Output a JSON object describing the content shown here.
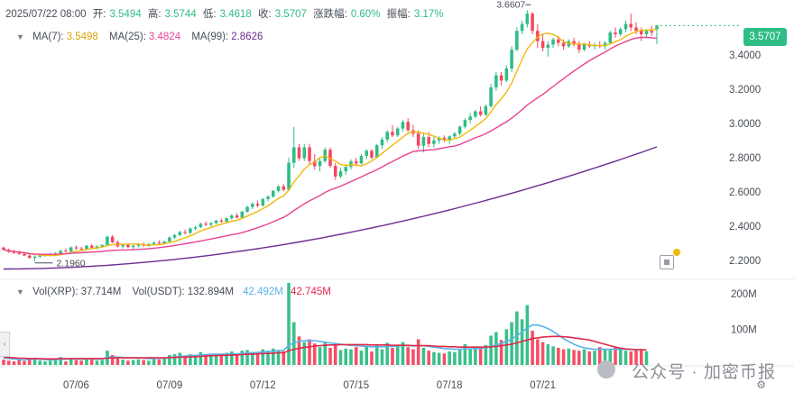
{
  "header": {
    "datetime": "2025/07/22 08:00",
    "open_label": "开:",
    "open": "3.5494",
    "high_label": "高:",
    "high": "3.5744",
    "low_label": "低:",
    "low": "3.4618",
    "close_label": "收:",
    "close": "3.5707",
    "change_label": "涨跌幅:",
    "change": "0.60%",
    "amplitude_label": "振幅:",
    "amplitude": "3.17%"
  },
  "ma_legend": {
    "ma7_label": "MA(7):",
    "ma7": "3.5498",
    "ma25_label": "MA(25):",
    "ma25": "3.4824",
    "ma99_label": "MA(99):",
    "ma99": "2.8626"
  },
  "vol_legend": {
    "vol_xrp_label": "Vol(XRP):",
    "vol_xrp": "37.714M",
    "vol_usdt_label": "Vol(USDT):",
    "vol_usdt": "132.894M",
    "v1": "42.492M",
    "v2": "42.745M"
  },
  "current_price": "3.5707",
  "watermark_text": "公众号 · 加密币报",
  "chart_data": {
    "type": "candlestick",
    "price_axis": {
      "ticks": [
        2.2,
        2.4,
        2.6,
        2.8,
        3.0,
        3.2,
        3.4
      ],
      "tick_labels": [
        "2.2000",
        "2.4000",
        "2.6000",
        "2.8000",
        "3.0000",
        "3.2000",
        "3.4000"
      ],
      "range": [
        2.1,
        3.72
      ]
    },
    "volume_axis": {
      "ticks": [
        100,
        200
      ],
      "tick_labels": [
        "100M",
        "200M"
      ],
      "unit": "M",
      "range": [
        0,
        240
      ]
    },
    "x_labels": [
      "07/06",
      "07/09",
      "07/12",
      "07/15",
      "07/18",
      "07/21"
    ],
    "annotations": {
      "high": "3.6607",
      "low": "2.1960"
    },
    "colors": {
      "up": "#2ebd85",
      "down": "#f6465d",
      "ma7": "#f0b90b",
      "ma25": "#e84393",
      "ma99": "#6c2c91",
      "vol_ma1": "#5ab4e5",
      "vol_ma2": "#e0294a"
    },
    "bar_interval": "4h",
    "candles_ohlc": [
      [
        2.275,
        2.281,
        2.258,
        2.262
      ],
      [
        2.262,
        2.27,
        2.244,
        2.25
      ],
      [
        2.25,
        2.262,
        2.238,
        2.244
      ],
      [
        2.244,
        2.258,
        2.232,
        2.238
      ],
      [
        2.238,
        2.248,
        2.225,
        2.228
      ],
      [
        2.228,
        2.24,
        2.21,
        2.215
      ],
      [
        2.215,
        2.23,
        2.196,
        2.222
      ],
      [
        2.222,
        2.235,
        2.214,
        2.228
      ],
      [
        2.228,
        2.24,
        2.22,
        2.232
      ],
      [
        2.232,
        2.245,
        2.224,
        2.236
      ],
      [
        2.236,
        2.248,
        2.228,
        2.241
      ],
      [
        2.241,
        2.262,
        2.236,
        2.256
      ],
      [
        2.256,
        2.27,
        2.246,
        2.252
      ],
      [
        2.252,
        2.282,
        2.248,
        2.276
      ],
      [
        2.276,
        2.288,
        2.262,
        2.27
      ],
      [
        2.27,
        2.28,
        2.258,
        2.266
      ],
      [
        2.266,
        2.29,
        2.262,
        2.286
      ],
      [
        2.286,
        2.295,
        2.27,
        2.274
      ],
      [
        2.274,
        2.288,
        2.266,
        2.282
      ],
      [
        2.282,
        2.295,
        2.275,
        2.29
      ],
      [
        2.29,
        2.345,
        2.286,
        2.338
      ],
      [
        2.338,
        2.348,
        2.3,
        2.306
      ],
      [
        2.306,
        2.318,
        2.276,
        2.282
      ],
      [
        2.282,
        2.296,
        2.27,
        2.291
      ],
      [
        2.291,
        2.3,
        2.272,
        2.278
      ],
      [
        2.278,
        2.29,
        2.266,
        2.286
      ],
      [
        2.286,
        2.3,
        2.276,
        2.294
      ],
      [
        2.294,
        2.305,
        2.28,
        2.286
      ],
      [
        2.286,
        2.3,
        2.278,
        2.296
      ],
      [
        2.296,
        2.31,
        2.288,
        2.304
      ],
      [
        2.304,
        2.318,
        2.295,
        2.3
      ],
      [
        2.3,
        2.315,
        2.292,
        2.31
      ],
      [
        2.31,
        2.34,
        2.305,
        2.334
      ],
      [
        2.334,
        2.355,
        2.325,
        2.348
      ],
      [
        2.348,
        2.372,
        2.34,
        2.366
      ],
      [
        2.366,
        2.38,
        2.352,
        2.36
      ],
      [
        2.36,
        2.392,
        2.355,
        2.386
      ],
      [
        2.386,
        2.4,
        2.376,
        2.394
      ],
      [
        2.394,
        2.42,
        2.388,
        2.414
      ],
      [
        2.414,
        2.428,
        2.4,
        2.408
      ],
      [
        2.408,
        2.422,
        2.398,
        2.418
      ],
      [
        2.418,
        2.438,
        2.41,
        2.432
      ],
      [
        2.432,
        2.445,
        2.42,
        2.426
      ],
      [
        2.426,
        2.45,
        2.42,
        2.446
      ],
      [
        2.446,
        2.47,
        2.438,
        2.462
      ],
      [
        2.462,
        2.475,
        2.444,
        2.45
      ],
      [
        2.45,
        2.49,
        2.446,
        2.484
      ],
      [
        2.484,
        2.52,
        2.478,
        2.512
      ],
      [
        2.512,
        2.54,
        2.5,
        2.53
      ],
      [
        2.53,
        2.55,
        2.51,
        2.52
      ],
      [
        2.52,
        2.565,
        2.515,
        2.558
      ],
      [
        2.558,
        2.58,
        2.545,
        2.572
      ],
      [
        2.572,
        2.612,
        2.566,
        2.606
      ],
      [
        2.606,
        2.64,
        2.596,
        2.632
      ],
      [
        2.632,
        2.648,
        2.604,
        2.612
      ],
      [
        2.612,
        2.8,
        2.606,
        2.77
      ],
      [
        2.77,
        2.98,
        2.74,
        2.86
      ],
      [
        2.86,
        2.88,
        2.78,
        2.796
      ],
      [
        2.796,
        2.88,
        2.78,
        2.86
      ],
      [
        2.86,
        2.88,
        2.76,
        2.78
      ],
      [
        2.78,
        2.82,
        2.73,
        2.75
      ],
      [
        2.75,
        2.8,
        2.72,
        2.78
      ],
      [
        2.78,
        2.86,
        2.77,
        2.846
      ],
      [
        2.846,
        2.86,
        2.74,
        2.752
      ],
      [
        2.752,
        2.77,
        2.67,
        2.69
      ],
      [
        2.69,
        2.74,
        2.68,
        2.72
      ],
      [
        2.72,
        2.76,
        2.7,
        2.746
      ],
      [
        2.746,
        2.79,
        2.73,
        2.778
      ],
      [
        2.778,
        2.8,
        2.75,
        2.766
      ],
      [
        2.766,
        2.82,
        2.76,
        2.81
      ],
      [
        2.81,
        2.85,
        2.79,
        2.84
      ],
      [
        2.84,
        2.85,
        2.79,
        2.8
      ],
      [
        2.8,
        2.88,
        2.796,
        2.872
      ],
      [
        2.872,
        2.92,
        2.85,
        2.906
      ],
      [
        2.906,
        2.96,
        2.89,
        2.95
      ],
      [
        2.95,
        2.99,
        2.92,
        2.93
      ],
      [
        2.93,
        2.98,
        2.92,
        2.97
      ],
      [
        2.97,
        3.02,
        2.95,
        3.008
      ],
      [
        3.008,
        3.03,
        2.95,
        2.96
      ],
      [
        2.96,
        2.99,
        2.92,
        2.94
      ],
      [
        2.94,
        2.96,
        2.85,
        2.87
      ],
      [
        2.87,
        2.94,
        2.83,
        2.92
      ],
      [
        2.92,
        2.95,
        2.86,
        2.88
      ],
      [
        2.88,
        2.92,
        2.86,
        2.9
      ],
      [
        2.9,
        2.925,
        2.88,
        2.916
      ],
      [
        2.916,
        2.93,
        2.89,
        2.9
      ],
      [
        2.9,
        2.93,
        2.88,
        2.924
      ],
      [
        2.924,
        2.95,
        2.91,
        2.94
      ],
      [
        2.94,
        2.99,
        2.93,
        2.98
      ],
      [
        2.98,
        3.03,
        2.97,
        3.02
      ],
      [
        3.02,
        3.06,
        3.0,
        3.04
      ],
      [
        3.04,
        3.08,
        3.03,
        3.07
      ],
      [
        3.07,
        3.1,
        3.04,
        3.05
      ],
      [
        3.05,
        3.11,
        3.045,
        3.1
      ],
      [
        3.1,
        3.23,
        3.09,
        3.21
      ],
      [
        3.21,
        3.3,
        3.19,
        3.28
      ],
      [
        3.28,
        3.3,
        3.22,
        3.25
      ],
      [
        3.25,
        3.34,
        3.24,
        3.32
      ],
      [
        3.32,
        3.45,
        3.3,
        3.43
      ],
      [
        3.43,
        3.56,
        3.42,
        3.54
      ],
      [
        3.54,
        3.6,
        3.52,
        3.58
      ],
      [
        3.58,
        3.661,
        3.56,
        3.64
      ],
      [
        3.64,
        3.65,
        3.52,
        3.54
      ],
      [
        3.54,
        3.58,
        3.44,
        3.48
      ],
      [
        3.48,
        3.52,
        3.42,
        3.44
      ],
      [
        3.44,
        3.48,
        3.39,
        3.46
      ],
      [
        3.46,
        3.5,
        3.44,
        3.49
      ],
      [
        3.49,
        3.51,
        3.45,
        3.47
      ],
      [
        3.47,
        3.49,
        3.43,
        3.45
      ],
      [
        3.45,
        3.49,
        3.44,
        3.48
      ],
      [
        3.48,
        3.5,
        3.45,
        3.46
      ],
      [
        3.46,
        3.48,
        3.41,
        3.43
      ],
      [
        3.43,
        3.47,
        3.42,
        3.46
      ],
      [
        3.46,
        3.48,
        3.44,
        3.45
      ],
      [
        3.45,
        3.47,
        3.43,
        3.456
      ],
      [
        3.456,
        3.48,
        3.44,
        3.45
      ],
      [
        3.45,
        3.48,
        3.43,
        3.47
      ],
      [
        3.47,
        3.54,
        3.46,
        3.53
      ],
      [
        3.53,
        3.56,
        3.5,
        3.52
      ],
      [
        3.52,
        3.56,
        3.51,
        3.55
      ],
      [
        3.55,
        3.6,
        3.53,
        3.58
      ],
      [
        3.58,
        3.64,
        3.54,
        3.56
      ],
      [
        3.56,
        3.59,
        3.52,
        3.54
      ],
      [
        3.54,
        3.56,
        3.48,
        3.52
      ],
      [
        3.52,
        3.55,
        3.5,
        3.54
      ],
      [
        3.54,
        3.57,
        3.51,
        3.53
      ],
      [
        3.549,
        3.574,
        3.462,
        3.571
      ]
    ],
    "volumes_m": [
      15,
      12,
      10,
      14,
      11,
      20,
      18,
      12,
      10,
      12,
      14,
      22,
      10,
      16,
      14,
      12,
      18,
      15,
      12,
      14,
      40,
      28,
      18,
      15,
      12,
      14,
      16,
      14,
      12,
      18,
      16,
      20,
      28,
      30,
      34,
      26,
      30,
      28,
      36,
      30,
      28,
      32,
      26,
      34,
      38,
      30,
      40,
      42,
      36,
      30,
      44,
      40,
      46,
      42,
      38,
      230,
      120,
      80,
      64,
      72,
      60,
      50,
      62,
      48,
      56,
      42,
      46,
      44,
      50,
      40,
      54,
      38,
      58,
      44,
      62,
      48,
      56,
      64,
      50,
      44,
      72,
      48,
      40,
      36,
      34,
      32,
      38,
      36,
      42,
      58,
      46,
      52,
      48,
      56,
      82,
      92,
      70,
      100,
      120,
      150,
      128,
      168,
      96,
      72,
      64,
      58,
      52,
      48,
      44,
      46,
      42,
      40,
      44,
      38,
      40,
      50,
      44,
      42,
      48,
      46,
      40,
      38,
      44,
      42,
      38
    ],
    "vol_ma1": [
      20,
      18,
      17,
      15,
      14,
      16,
      17,
      16,
      15,
      14,
      15,
      16,
      16,
      17,
      17,
      16,
      17,
      17,
      16,
      17,
      22,
      23,
      22,
      21,
      20,
      20,
      20,
      19,
      18,
      18,
      19,
      19,
      21,
      22,
      24,
      25,
      26,
      27,
      28,
      29,
      30,
      30,
      30,
      30,
      31,
      31,
      32,
      33,
      34,
      35,
      36,
      38,
      39,
      40,
      41,
      55,
      62,
      66,
      68,
      68,
      68,
      66,
      64,
      62,
      60,
      58,
      56,
      55,
      54,
      53,
      52,
      51,
      51,
      51,
      52,
      52,
      53,
      54,
      54,
      53,
      54,
      54,
      52,
      50,
      48,
      46,
      45,
      44,
      44,
      45,
      45,
      46,
      47,
      48,
      52,
      56,
      60,
      66,
      72,
      82,
      92,
      104,
      112,
      112,
      108,
      102,
      94,
      84,
      74,
      66,
      58,
      52,
      48,
      46,
      44,
      44,
      44,
      44,
      44,
      44,
      44,
      43,
      43,
      43,
      42
    ],
    "vol_ma2": [
      22,
      21,
      20,
      19,
      19,
      18,
      18,
      18,
      17,
      17,
      17,
      18,
      18,
      18,
      18,
      18,
      18,
      18,
      18,
      18,
      19,
      20,
      20,
      20,
      20,
      20,
      20,
      20,
      20,
      20,
      20,
      20,
      21,
      21,
      22,
      22,
      23,
      23,
      24,
      25,
      26,
      26,
      27,
      27,
      28,
      28,
      29,
      30,
      30,
      31,
      32,
      32,
      33,
      34,
      34,
      40,
      44,
      47,
      49,
      51,
      53,
      54,
      55,
      56,
      56,
      57,
      57,
      57,
      57,
      57,
      57,
      56,
      56,
      56,
      56,
      55,
      55,
      55,
      55,
      54,
      54,
      54,
      54,
      53,
      52,
      52,
      51,
      51,
      50,
      50,
      50,
      50,
      50,
      50,
      51,
      52,
      54,
      56,
      58,
      62,
      66,
      70,
      74,
      76,
      78,
      79,
      80,
      80,
      79,
      78,
      76,
      74,
      72,
      70,
      66,
      62,
      58,
      54,
      50,
      47,
      45,
      44,
      43,
      43,
      42
    ]
  }
}
